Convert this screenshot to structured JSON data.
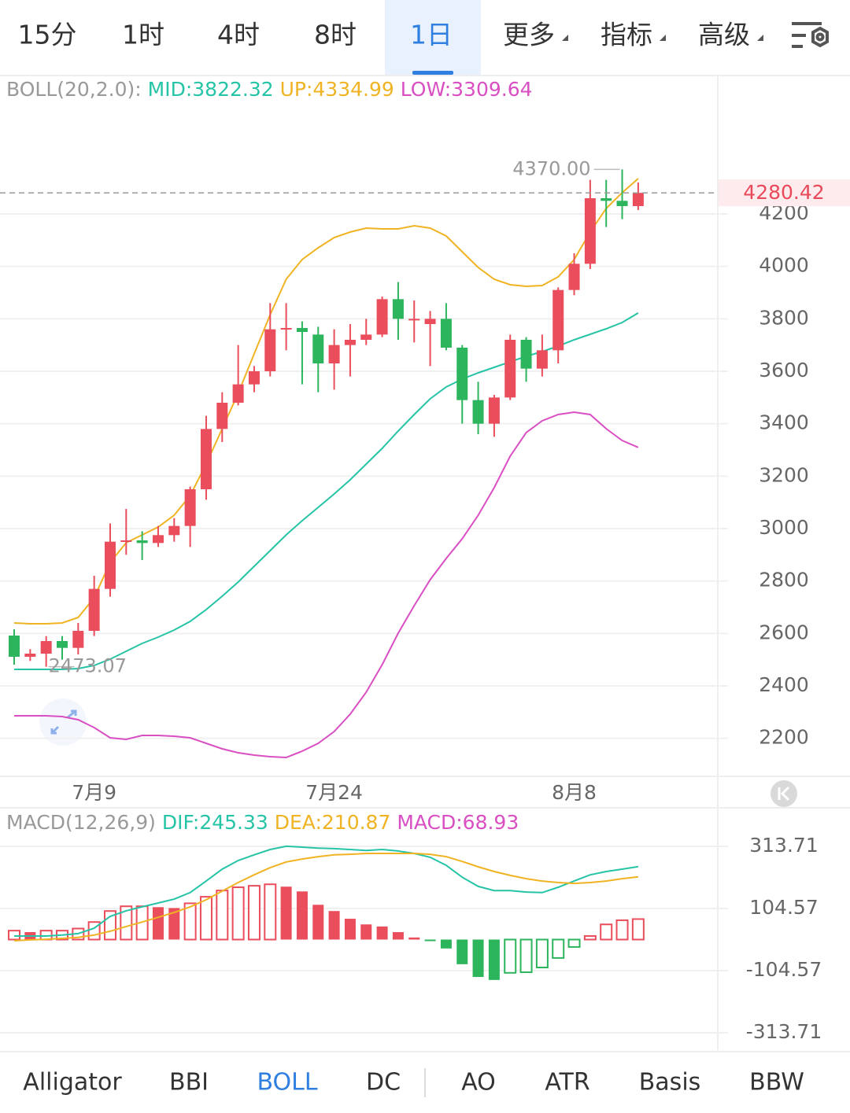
{
  "top_tabs": {
    "items": [
      "15分",
      "1时",
      "4时",
      "8时",
      "1日",
      "更多",
      "指标",
      "高级"
    ],
    "selected": "1日"
  },
  "bottom_tabs": {
    "items": [
      "Alligator",
      "BBI",
      "BOLL",
      "DC",
      "AO",
      "ATR",
      "Basis",
      "BBW"
    ],
    "selected": "BOLL"
  },
  "chart_data": [
    {
      "type": "candlestick",
      "indicator_label": "BOLL(20,2.0):",
      "categories": [
        null,
        null,
        null,
        null,
        null,
        "7月9",
        null,
        null,
        null,
        null,
        null,
        null,
        null,
        null,
        null,
        null,
        null,
        null,
        null,
        null,
        "7月24",
        null,
        null,
        null,
        null,
        null,
        null,
        null,
        null,
        null,
        null,
        null,
        null,
        null,
        null,
        "8月8",
        null,
        null,
        null,
        null
      ],
      "open": [
        2592,
        2511,
        2523,
        2571,
        2545,
        2610,
        2770,
        2950,
        2955,
        2945,
        2975,
        3010,
        3150,
        3380,
        3480,
        3550,
        3600,
        3760,
        3765,
        3740,
        3630,
        3700,
        3720,
        3740,
        3875,
        3800,
        3780,
        3800,
        3690,
        3490,
        3400,
        3500,
        3720,
        3610,
        3680,
        3910,
        4010,
        4260,
        4250,
        4230
      ],
      "high": [
        2616,
        2540,
        2590,
        2590,
        2640,
        2820,
        3020,
        3075,
        2990,
        3010,
        3040,
        3160,
        3430,
        3520,
        3700,
        3620,
        3860,
        3860,
        3790,
        3770,
        3760,
        3780,
        3800,
        3885,
        3940,
        3870,
        3830,
        3860,
        3700,
        3560,
        3510,
        3740,
        3730,
        3740,
        3920,
        4050,
        4330,
        4330,
        4370,
        4320
      ],
      "low": [
        2481,
        2495,
        2473.07,
        2500,
        2520,
        2590,
        2740,
        2900,
        2880,
        2930,
        2950,
        2930,
        3110,
        3330,
        3470,
        3520,
        3580,
        3680,
        3550,
        3520,
        3530,
        3580,
        3700,
        3730,
        3720,
        3710,
        3620,
        3680,
        3400,
        3360,
        3350,
        3490,
        3560,
        3580,
        3630,
        3890,
        3990,
        4150,
        4180,
        4215
      ],
      "close": [
        2511,
        2523,
        2571,
        2545,
        2610,
        2770,
        2950,
        2955,
        2945,
        2975,
        3010,
        3150,
        3380,
        3480,
        3550,
        3600,
        3760,
        3765,
        3750,
        3630,
        3700,
        3720,
        3740,
        3875,
        3800,
        3800,
        3800,
        3690,
        3490,
        3400,
        3500,
        3720,
        3610,
        3680,
        3910,
        4010,
        4260,
        4250,
        4230,
        4280.42
      ],
      "up_color": "#ea4d5b",
      "down_color": "#2db55d",
      "overlays": [
        {
          "label": "MID:3822.32",
          "color": "#26c4a6",
          "values": [
            2463,
            2463,
            2463,
            2463,
            2466,
            2478,
            2502,
            2532,
            2562,
            2586,
            2613,
            2646,
            2691,
            2742,
            2796,
            2856,
            2916,
            2976,
            3030,
            3081,
            3132,
            3186,
            3246,
            3306,
            3372,
            3435,
            3495,
            3540,
            3570,
            3594,
            3615,
            3636,
            3657,
            3675,
            3696,
            3720,
            3741,
            3762,
            3786,
            3822.32
          ]
        },
        {
          "label": "UP:4334.99",
          "color": "#f0b323",
          "values": [
            2640,
            2637,
            2637,
            2640,
            2661,
            2736,
            2871,
            2946,
            2976,
            3006,
            3051,
            3126,
            3246,
            3381,
            3516,
            3666,
            3816,
            3951,
            4026,
            4071,
            4110,
            4131,
            4146,
            4143,
            4143,
            4155,
            4146,
            4116,
            4056,
            3996,
            3951,
            3930,
            3924,
            3927,
            3960,
            4026,
            4131,
            4221,
            4281,
            4334.99
          ]
        },
        {
          "label": "LOW:3309.64",
          "color": "#d94fc3",
          "values": [
            2286,
            2286,
            2286,
            2283,
            2271,
            2241,
            2202,
            2196,
            2211,
            2211,
            2208,
            2202,
            2181,
            2160,
            2145,
            2136,
            2130,
            2127,
            2151,
            2181,
            2226,
            2292,
            2376,
            2481,
            2601,
            2706,
            2805,
            2886,
            2961,
            3051,
            3156,
            3276,
            3366,
            3411,
            3435,
            3444,
            3435,
            3381,
            3336,
            3309.64
          ]
        }
      ],
      "annotations": [
        {
          "value": 4370,
          "label": "4370.00"
        },
        2473.07
      ],
      "ylim": [
        2055,
        4725
      ],
      "yticks": [
        4200,
        4000,
        3800,
        3600,
        3400,
        3200,
        3000,
        2800,
        2600,
        2400,
        2200
      ],
      "grid": true
    },
    {
      "type": "macd",
      "indicator_label": "MACD(12,26,9)",
      "series": [
        {
          "label": "DIF:245.33",
          "color": "#26c4a6",
          "values": [
            12,
            12,
            12,
            15,
            20,
            38,
            78,
            97,
            110,
            123,
            136,
            158,
            197,
            237,
            266,
            285,
            303,
            314,
            311,
            308,
            306,
            303,
            300,
            303,
            298,
            290,
            277,
            250,
            210,
            179,
            165,
            165,
            160,
            158,
            176,
            197,
            218,
            229,
            237,
            245.33
          ]
        },
        {
          "label": "DEA:210.87",
          "color": "#f0b323",
          "values": [
            -4,
            -1,
            1,
            4,
            7,
            15,
            28,
            44,
            59,
            75,
            91,
            110,
            134,
            163,
            192,
            218,
            242,
            261,
            271,
            279,
            285,
            287,
            290,
            290,
            290,
            290,
            287,
            279,
            263,
            245,
            229,
            216,
            205,
            197,
            192,
            189,
            192,
            197,
            205,
            210.87
          ]
        }
      ],
      "histogram": {
        "label": "MACD:68.93",
        "color": "#d94fc3",
        "up_color": "#ea4d5b",
        "down_color": "#2db55d",
        "values": [
          30,
          25,
          30,
          30,
          37,
          59,
          96,
          112,
          112,
          109,
          106,
          122,
          144,
          165,
          176,
          181,
          186,
          178,
          162,
          117,
          96,
          70,
          51,
          44,
          25,
          7,
          -4,
          -30,
          -83,
          -126,
          -136,
          -112,
          -110,
          -94,
          -62,
          -25,
          12,
          51,
          65,
          68.93
        ]
      },
      "ylim": [
        -372,
        435.5
      ],
      "yticks": [
        313.71,
        104.57,
        -104.57,
        -313.71
      ],
      "grid": true
    }
  ]
}
